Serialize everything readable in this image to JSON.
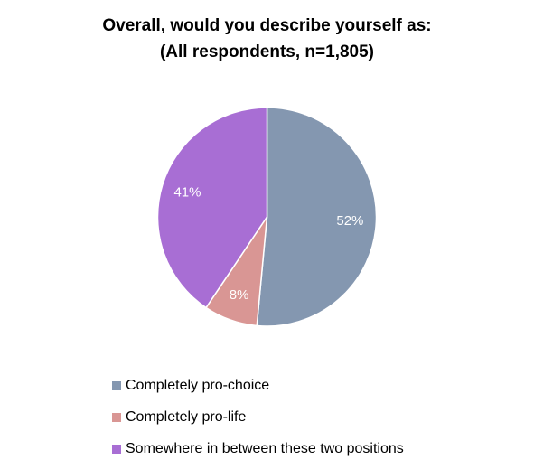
{
  "chart_data": {
    "type": "pie",
    "title_lines": [
      "Overall, would you describe yourself as:",
      "(All respondents,  n=1,805)"
    ],
    "slices": [
      {
        "label": "Completely pro-choice",
        "value": 52,
        "display": "52%",
        "color": "#8497B0"
      },
      {
        "label": "Completely pro-life",
        "value": 8,
        "display": "8%",
        "color": "#D99694"
      },
      {
        "label": "Somewhere in between these two positions",
        "value": 41,
        "display": "41%",
        "color": "#A86ED4"
      }
    ],
    "start_angle": "12 o'clock",
    "direction": "clockwise",
    "legend_position": "bottom-left"
  }
}
